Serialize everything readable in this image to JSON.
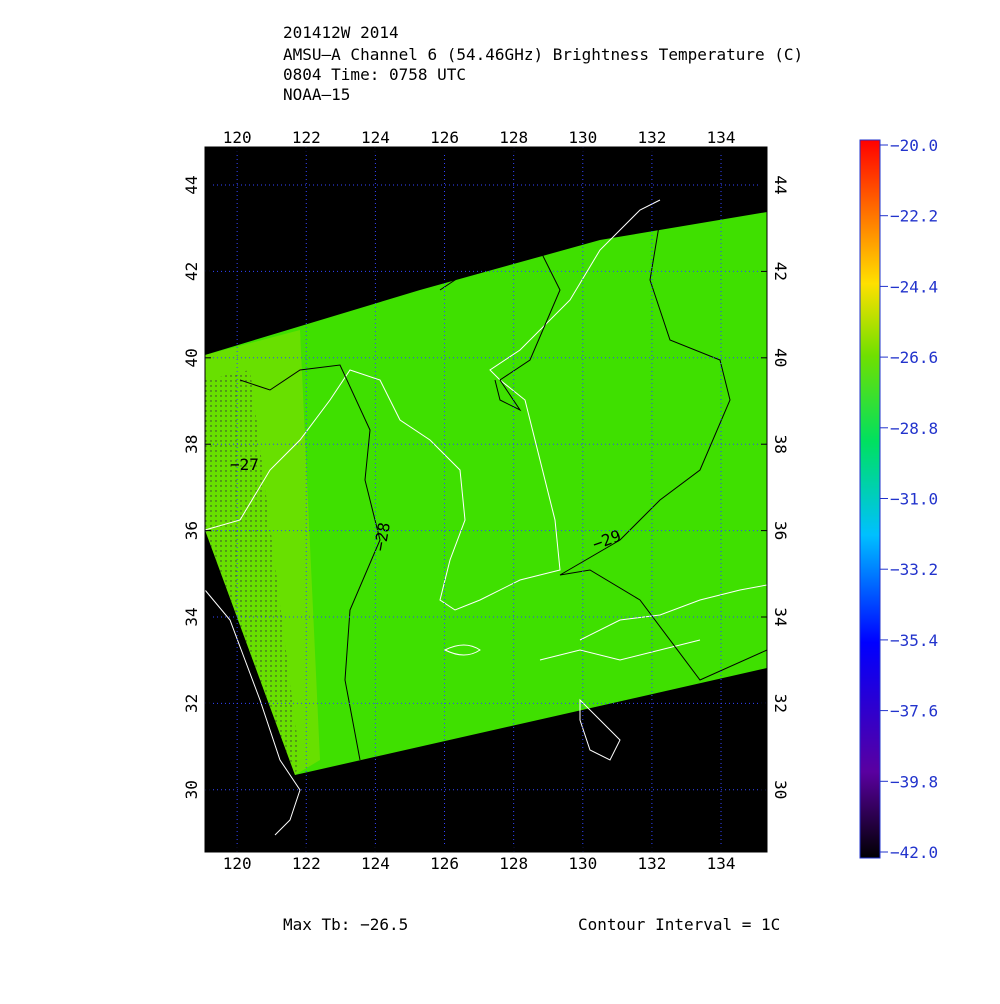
{
  "header": {
    "lines": [
      "201412W 2014",
      "AMSU–A Channel 6 (54.46GHz) Brightness Temperature (C)",
      "0804 Time: 0758 UTC",
      "NOAA–15"
    ]
  },
  "map": {
    "xlim": [
      119.07,
      135.33
    ],
    "ylim": [
      28.56,
      44.88
    ],
    "xticks": [
      120,
      122,
      124,
      126,
      128,
      130,
      132,
      134
    ],
    "yticks": [
      30,
      32,
      34,
      36,
      38,
      40,
      42,
      44
    ],
    "contour_labels": [
      "−27",
      "−28",
      "−29"
    ]
  },
  "colorbar": {
    "lim": [
      -42,
      -20
    ],
    "ticks": [
      {
        "value": -20,
        "label": "−20.0"
      },
      {
        "value": -22.2,
        "label": "−22.2"
      },
      {
        "value": -24.4,
        "label": "−24.4"
      },
      {
        "value": -26.6,
        "label": "−26.6"
      },
      {
        "value": -28.8,
        "label": "−28.8"
      },
      {
        "value": -31,
        "label": "−31.0"
      },
      {
        "value": -33.2,
        "label": "−33.2"
      },
      {
        "value": -35.4,
        "label": "−35.4"
      },
      {
        "value": -37.6,
        "label": "−37.6"
      },
      {
        "value": -39.8,
        "label": "−39.8"
      },
      {
        "value": -42,
        "label": "−42.0"
      }
    ]
  },
  "footer": {
    "max_tb": "Max Tb: −26.5",
    "contour_interval": "Contour Interval = 1C"
  }
}
